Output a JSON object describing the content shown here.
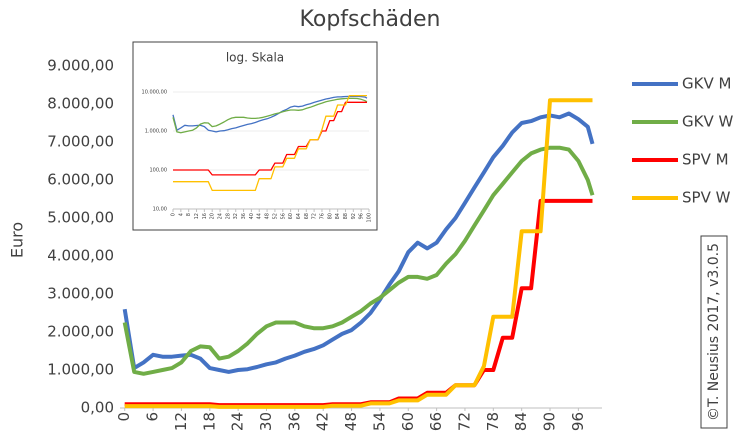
{
  "chart_data": [
    {
      "type": "line",
      "title": "Kopfschäden",
      "y_label": "Euro",
      "annotation": "©T. Neusius 2017, v3.0.5",
      "x": [
        0,
        2,
        4,
        6,
        8,
        10,
        12,
        14,
        16,
        18,
        20,
        22,
        24,
        26,
        28,
        30,
        32,
        34,
        36,
        38,
        40,
        42,
        44,
        46,
        48,
        50,
        52,
        54,
        56,
        58,
        60,
        62,
        64,
        66,
        68,
        70,
        72,
        74,
        76,
        78,
        80,
        82,
        84,
        86,
        88,
        90,
        92,
        94,
        96,
        98,
        99
      ],
      "series": [
        {
          "name": "GKV M",
          "color": "#4472c4",
          "values": [
            2600,
            1050,
            1200,
            1400,
            1350,
            1350,
            1380,
            1400,
            1300,
            1050,
            1000,
            950,
            1000,
            1020,
            1080,
            1150,
            1200,
            1300,
            1380,
            1480,
            1550,
            1650,
            1800,
            1950,
            2050,
            2250,
            2500,
            2850,
            3250,
            3600,
            4100,
            4350,
            4200,
            4350,
            4700,
            5000,
            5400,
            5800,
            6200,
            6600,
            6900,
            7250,
            7500,
            7550,
            7650,
            7700,
            7650,
            7750,
            7600,
            7400,
            6950
          ]
        },
        {
          "name": "GKV W",
          "color": "#70ad47",
          "values": [
            2250,
            950,
            900,
            950,
            1000,
            1050,
            1200,
            1500,
            1620,
            1600,
            1300,
            1350,
            1500,
            1700,
            1950,
            2150,
            2250,
            2250,
            2250,
            2150,
            2100,
            2100,
            2150,
            2250,
            2400,
            2550,
            2750,
            2900,
            3100,
            3300,
            3450,
            3450,
            3400,
            3500,
            3800,
            4050,
            4400,
            4800,
            5200,
            5600,
            5900,
            6200,
            6500,
            6700,
            6800,
            6850,
            6850,
            6800,
            6500,
            6000,
            5600
          ]
        },
        {
          "name": "SPV M",
          "color": "#ff0000",
          "values": [
            100,
            100,
            100,
            100,
            100,
            100,
            100,
            100,
            100,
            100,
            75,
            75,
            75,
            75,
            75,
            75,
            75,
            75,
            75,
            75,
            75,
            75,
            100,
            100,
            100,
            100,
            150,
            150,
            150,
            250,
            250,
            250,
            400,
            400,
            400,
            600,
            600,
            600,
            1000,
            1000,
            1850,
            1850,
            3150,
            3150,
            5450,
            5450,
            5450,
            5450,
            5450,
            5450,
            5450
          ]
        },
        {
          "name": "SPV W",
          "color": "#ffc000",
          "values": [
            50,
            50,
            50,
            50,
            50,
            50,
            50,
            50,
            50,
            50,
            30,
            30,
            30,
            30,
            30,
            30,
            30,
            30,
            30,
            30,
            30,
            30,
            60,
            60,
            60,
            60,
            120,
            120,
            120,
            200,
            200,
            200,
            350,
            350,
            350,
            600,
            600,
            600,
            1100,
            2400,
            2400,
            2400,
            4650,
            4650,
            4650,
            8100,
            8100,
            8100,
            8100,
            8100,
            8100
          ]
        }
      ],
      "xlim": [
        -1,
        101
      ],
      "xticks": [
        0,
        6,
        12,
        18,
        24,
        30,
        36,
        42,
        48,
        54,
        60,
        66,
        72,
        78,
        84,
        90,
        96
      ],
      "ylim": [
        0,
        9000
      ],
      "yticks": [
        {
          "value": 0,
          "label": "0,00"
        },
        {
          "value": 1000,
          "label": "1.000,00"
        },
        {
          "value": 2000,
          "label": "2.000,00"
        },
        {
          "value": 3000,
          "label": "3.000,00"
        },
        {
          "value": 4000,
          "label": "4.000,00"
        },
        {
          "value": 5000,
          "label": "5.000,00"
        },
        {
          "value": 6000,
          "label": "6.000,00"
        },
        {
          "value": 7000,
          "label": "7.000,00"
        },
        {
          "value": 8000,
          "label": "8.000,00"
        },
        {
          "value": 9000,
          "label": "9.000,00"
        }
      ],
      "legend": "right"
    },
    {
      "type": "line",
      "title": "log. Skala",
      "log_scale": true,
      "xlim": [
        0,
        100
      ],
      "xticks": [
        0,
        4,
        8,
        12,
        16,
        20,
        24,
        28,
        32,
        36,
        40,
        44,
        48,
        52,
        56,
        60,
        64,
        68,
        72,
        76,
        80,
        84,
        88,
        92,
        96,
        100
      ],
      "ylim": [
        10,
        10000
      ],
      "yticks": [
        {
          "value": 10,
          "label": "10,00"
        },
        {
          "value": 100,
          "label": "100,00"
        },
        {
          "value": 1000,
          "label": "1.000,00"
        },
        {
          "value": 10000,
          "label": "10.000,00"
        }
      ],
      "grid": true
    }
  ]
}
